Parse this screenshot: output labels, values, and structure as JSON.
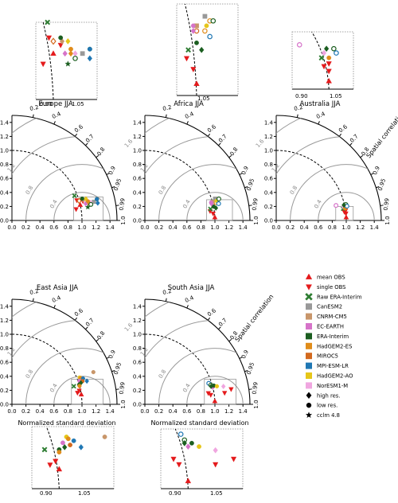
{
  "colors": {
    "obs_red": "#e41a1c",
    "raw_era_green": "#2e7d32",
    "CanESM2": "#999999",
    "CNRM-CM5": "#c8966a",
    "EC-EARTH": "#d673c9",
    "ERA-Interim": "#1b5e20",
    "HadGEM2-ES": "#e08c1a",
    "MIROC5": "#d2691e",
    "MPI-ESM-LR": "#1f77b4",
    "HadGEM2-AO": "#e6c619",
    "NorESM1-M": "#f0a6e0",
    "arc_gray": "#999999"
  },
  "axis_ticks": {
    "std": [
      "0.0",
      "0.2",
      "0.4",
      "0.6",
      "0.8",
      "1.0",
      "1.2",
      "1.4"
    ],
    "corr": [
      "0.2",
      "0.4",
      "0.6",
      "0.7",
      "0.8",
      "0.9",
      "0.95",
      "0.99",
      "1.0"
    ],
    "rms": [
      "0.4",
      "0.8",
      "1.2",
      "1.6"
    ]
  },
  "axis_labels": {
    "xlabel": "Normalized standard deviation",
    "corr_label": "Spatial correlation"
  },
  "inset_ticks": [
    "0.90",
    "1.05"
  ],
  "legend": {
    "items": [
      {
        "label": "mean OBS",
        "marker": "triangle-up",
        "color": "#e41a1c"
      },
      {
        "label": "single OBS",
        "marker": "triangle-down",
        "color": "#e41a1c"
      },
      {
        "label": "Raw ERA-Interim",
        "marker": "x",
        "color": "#2e7d32"
      },
      {
        "label": "CanESM2",
        "marker": "square",
        "color": "#999999"
      },
      {
        "label": "CNRM-CM5",
        "marker": "square",
        "color": "#c8966a"
      },
      {
        "label": "EC-EARTH",
        "marker": "square",
        "color": "#d673c9"
      },
      {
        "label": "ERA-Interim",
        "marker": "square",
        "color": "#1b5e20"
      },
      {
        "label": "HadGEM2-ES",
        "marker": "square",
        "color": "#e08c1a"
      },
      {
        "label": "MIROC5",
        "marker": "square",
        "color": "#d2691e"
      },
      {
        "label": "MPI-ESM-LR",
        "marker": "square",
        "color": "#1f77b4"
      },
      {
        "label": "HadGEM2-AO",
        "marker": "square",
        "color": "#e6c619"
      },
      {
        "label": "NorESM1-M",
        "marker": "square",
        "color": "#f0a6e0"
      },
      {
        "label": "high res.",
        "marker": "diamond",
        "color": "#000000"
      },
      {
        "label": "low res.",
        "marker": "circle",
        "color": "#000000"
      },
      {
        "label": "cclm 4.8",
        "marker": "star",
        "color": "#000000"
      }
    ]
  },
  "chart_data": [
    {
      "type": "scatter",
      "title": "Europe JJA",
      "xlabel": "",
      "ylabel": "",
      "xlim": [
        0,
        1.5
      ],
      "ylim": [
        0,
        1.5
      ],
      "show_corr_label": false,
      "points": [
        {
          "sd": 1.0,
          "r": 0.975,
          "m": "tri-up",
          "c": "obs_red"
        },
        {
          "sd": 0.93,
          "r": 0.985,
          "m": "tri-down",
          "c": "obs_red"
        },
        {
          "sd": 0.97,
          "r": 0.955,
          "m": "tri-down",
          "c": "obs_red"
        },
        {
          "sd": 1.05,
          "r": 0.965,
          "m": "tri-down",
          "c": "obs_red"
        },
        {
          "sd": 0.96,
          "r": 0.93,
          "m": "x",
          "c": "raw_era_green"
        },
        {
          "sd": 1.2,
          "r": 0.975,
          "m": "sq",
          "c": "CanESM2"
        },
        {
          "sd": 1.06,
          "r": 0.96,
          "m": "dia",
          "c": "CNRM-CM5"
        },
        {
          "sd": 1.12,
          "r": 0.975,
          "m": "dia",
          "c": "HadGEM2-ES"
        },
        {
          "sd": 1.0,
          "r": 0.96,
          "m": "dia",
          "c": "MIROC5",
          "open": true
        },
        {
          "sd": 1.08,
          "r": 0.975,
          "m": "dia",
          "c": "EC-EARTH"
        },
        {
          "sd": 1.15,
          "r": 0.975,
          "m": "dia",
          "c": "NorESM1-M"
        },
        {
          "sd": 1.1,
          "r": 0.96,
          "m": "dia",
          "c": "HadGEM2-AO"
        },
        {
          "sd": 1.25,
          "r": 0.98,
          "m": "dia",
          "c": "MPI-ESM-LR"
        },
        {
          "sd": 1.05,
          "r": 0.955,
          "m": "circ",
          "c": "ERA-Interim"
        },
        {
          "sd": 1.12,
          "r": 0.97,
          "m": "circ",
          "c": "HadGEM2-ES"
        },
        {
          "sd": 1.15,
          "r": 0.98,
          "m": "circ",
          "c": "ERA-Interim",
          "open": true
        },
        {
          "sd": 1.25,
          "r": 0.97,
          "m": "circ",
          "c": "ERA-Interim"
        },
        {
          "sd": 1.25,
          "r": 0.97,
          "m": "circ",
          "c": "MPI-ESM-LR"
        },
        {
          "sd": 1.1,
          "r": 0.985,
          "m": "star",
          "c": "ERA-Interim"
        }
      ],
      "inset": {
        "sd": [
          0.88,
          1.3
        ],
        "r": [
          0.93,
          1.0
        ]
      }
    },
    {
      "type": "scatter",
      "title": "Africa JJA",
      "xlabel": "",
      "ylabel": "",
      "xlim": [
        0,
        1.5
      ],
      "ylim": [
        0,
        1.5
      ],
      "show_corr_label": false,
      "points": [
        {
          "sd": 1.0,
          "r": 0.999,
          "m": "tri-up",
          "c": "obs_red"
        },
        {
          "sd": 0.98,
          "r": 0.995,
          "m": "tri-down",
          "c": "obs_red"
        },
        {
          "sd": 0.94,
          "r": 0.99,
          "m": "tri-down",
          "c": "obs_red"
        },
        {
          "sd": 0.95,
          "r": 0.985,
          "m": "x",
          "c": "raw_era_green"
        },
        {
          "sd": 1.0,
          "r": 0.97,
          "m": "circ",
          "c": "MIROC5",
          "open": true
        },
        {
          "sd": 1.05,
          "r": 0.97,
          "m": "circ",
          "c": "HadGEM2-ES",
          "open": true
        },
        {
          "sd": 1.08,
          "r": 0.96,
          "m": "circ",
          "c": "HadGEM2-ES",
          "open": true
        },
        {
          "sd": 1.05,
          "r": 0.955,
          "m": "sq",
          "c": "CanESM2"
        },
        {
          "sd": 1.0,
          "r": 0.965,
          "m": "sq",
          "c": "CNRM-CM5"
        },
        {
          "sd": 0.98,
          "r": 0.965,
          "m": "circ",
          "c": "EC-EARTH"
        },
        {
          "sd": 1.06,
          "r": 0.965,
          "m": "circ",
          "c": "HadGEM2-AO"
        },
        {
          "sd": 1.1,
          "r": 0.96,
          "m": "circ",
          "c": "ERA-Interim",
          "open": true
        },
        {
          "sd": 1.08,
          "r": 0.975,
          "m": "circ",
          "c": "MPI-ESM-LR",
          "open": true
        },
        {
          "sd": 1.03,
          "r": 0.985,
          "m": "dia",
          "c": "ERA-Interim"
        },
        {
          "sd": 1.0,
          "r": 0.98,
          "m": "circ",
          "c": "ERA-Interim"
        },
        {
          "sd": 0.98,
          "r": 0.97,
          "m": "dia",
          "c": "EC-EARTH"
        }
      ],
      "inset": {
        "sd": [
          0.88,
          1.25
        ],
        "r": [
          0.94,
          1.0
        ]
      }
    },
    {
      "type": "scatter",
      "title": "Australia JJA",
      "xlabel": "",
      "ylabel": "",
      "xlim": [
        0,
        1.5
      ],
      "ylim": [
        0,
        1.5
      ],
      "show_corr_label": true,
      "points": [
        {
          "sd": 1.0,
          "r": 0.999,
          "m": "tri-up",
          "c": "obs_red"
        },
        {
          "sd": 1.0,
          "r": 0.995,
          "m": "tri-down",
          "c": "obs_red"
        },
        {
          "sd": 0.98,
          "r": 0.992,
          "m": "tri-down",
          "c": "obs_red"
        },
        {
          "sd": 1.0,
          "r": 0.99,
          "m": "tri-down",
          "c": "obs_red"
        },
        {
          "sd": 0.97,
          "r": 0.985,
          "m": "x",
          "c": "raw_era_green"
        },
        {
          "sd": 0.88,
          "r": 0.97,
          "m": "circ",
          "c": "EC-EARTH",
          "open": true
        },
        {
          "sd": 0.98,
          "r": 0.98,
          "m": "dia",
          "c": "NorESM1-M"
        },
        {
          "sd": 1.0,
          "r": 0.985,
          "m": "circ",
          "c": "HadGEM2-ES"
        },
        {
          "sd": 1.02,
          "r": 0.975,
          "m": "circ",
          "c": "ERA-Interim",
          "open": true
        },
        {
          "sd": 1.03,
          "r": 0.98,
          "m": "circ",
          "c": "MPI-ESM-LR",
          "open": true
        },
        {
          "sd": 0.99,
          "r": 0.975,
          "m": "dia",
          "c": "ERA-Interim"
        }
      ],
      "inset": {
        "sd": [
          0.85,
          1.1
        ],
        "r": [
          0.95,
          1.0
        ]
      }
    },
    {
      "type": "scatter",
      "title": "East Asia JJA",
      "xlabel": "Normalized standard deviation",
      "ylabel": "",
      "xlim": [
        0,
        1.5
      ],
      "ylim": [
        0,
        1.5
      ],
      "show_corr_label": false,
      "points": [
        {
          "sd": 1.0,
          "r": 0.99,
          "m": "tri-up",
          "c": "obs_red"
        },
        {
          "sd": 0.95,
          "r": 0.985,
          "m": "tri-down",
          "c": "obs_red"
        },
        {
          "sd": 0.98,
          "r": 0.98,
          "m": "tri-down",
          "c": "obs_red"
        },
        {
          "sd": 0.92,
          "r": 0.96,
          "m": "x",
          "c": "raw_era_green"
        },
        {
          "sd": 1.25,
          "r": 0.93,
          "m": "circ",
          "c": "CNRM-CM5"
        },
        {
          "sd": 1.04,
          "r": 0.93,
          "m": "circ",
          "c": "HadGEM2-AO"
        },
        {
          "sd": 1.05,
          "r": 0.935,
          "m": "circ",
          "c": "HadGEM2-ES"
        },
        {
          "sd": 1.08,
          "r": 0.94,
          "m": "circ",
          "c": "MPI-ESM-LR"
        },
        {
          "sd": 1.02,
          "r": 0.945,
          "m": "circ",
          "c": "EC-EARTH"
        },
        {
          "sd": 1.06,
          "r": 0.95,
          "m": "circ",
          "c": "MIROC5"
        },
        {
          "sd": 1.03,
          "r": 0.955,
          "m": "dia",
          "c": "ERA-Interim"
        },
        {
          "sd": 1.12,
          "r": 0.955,
          "m": "dia",
          "c": "MPI-ESM-LR"
        },
        {
          "sd": 1.0,
          "r": 0.96,
          "m": "circ",
          "c": "ERA-Interim"
        },
        {
          "sd": 1.0,
          "r": 0.965,
          "m": "circ",
          "c": "HadGEM2-ES"
        }
      ],
      "inset": {
        "sd": [
          0.85,
          1.3
        ],
        "r": [
          0.9,
          1.0
        ]
      }
    },
    {
      "type": "scatter",
      "title": "South Asia JJA",
      "xlabel": "Normalized standard deviation",
      "ylabel": "",
      "xlim": [
        0,
        1.5
      ],
      "ylim": [
        0,
        1.5
      ],
      "show_corr_label": true,
      "points": [
        {
          "sd": 1.0,
          "r": 0.999,
          "m": "tri-up",
          "c": "obs_red"
        },
        {
          "sd": 0.95,
          "r": 0.99,
          "m": "tri-down",
          "c": "obs_red"
        },
        {
          "sd": 1.15,
          "r": 0.99,
          "m": "tri-down",
          "c": "obs_red"
        },
        {
          "sd": 1.25,
          "r": 0.985,
          "m": "tri-down",
          "c": "obs_red"
        },
        {
          "sd": 0.92,
          "r": 0.985,
          "m": "tri-down",
          "c": "obs_red"
        },
        {
          "sd": 0.96,
          "r": 0.95,
          "m": "circ",
          "c": "MPI-ESM-LR",
          "open": true
        },
        {
          "sd": 0.98,
          "r": 0.96,
          "m": "circ",
          "c": "ERA-Interim",
          "open": true
        },
        {
          "sd": 1.0,
          "r": 0.97,
          "m": "dia",
          "c": "EC-EARTH"
        },
        {
          "sd": 0.98,
          "r": 0.965,
          "m": "dia",
          "c": "ERA-Interim"
        },
        {
          "sd": 1.02,
          "r": 0.965,
          "m": "circ",
          "c": "ERA-Interim"
        },
        {
          "sd": 1.06,
          "r": 0.97,
          "m": "circ",
          "c": "HadGEM2-AO"
        },
        {
          "sd": 1.15,
          "r": 0.975,
          "m": "dia",
          "c": "NorESM1-M"
        }
      ],
      "inset": {
        "sd": [
          0.85,
          1.3
        ],
        "r": [
          0.94,
          1.0
        ]
      }
    }
  ]
}
